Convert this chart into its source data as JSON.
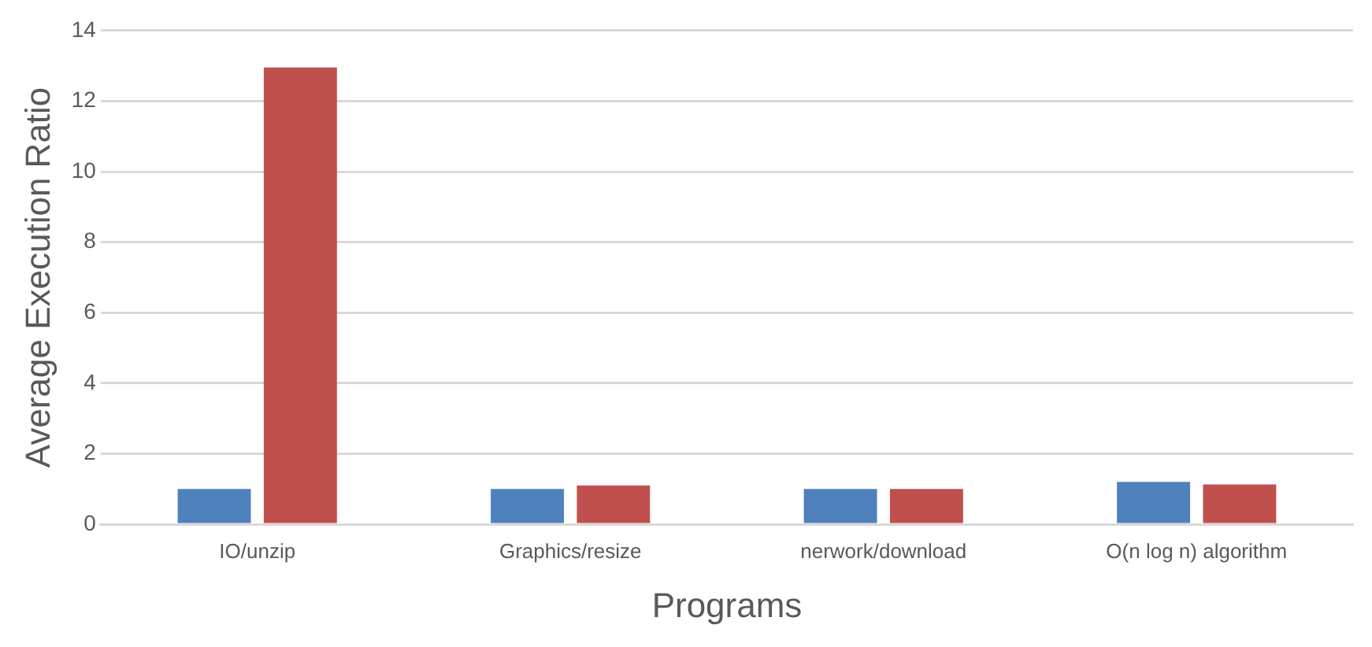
{
  "chart_data": {
    "type": "bar",
    "xlabel": "Programs",
    "ylabel": "Average Execution Ratio",
    "categories": [
      "IO/unzip",
      "Graphics/resize",
      "nerwork/download",
      "O(n log n) algorithm"
    ],
    "series": [
      {
        "color": "#4f81bd",
        "values": [
          1.0,
          1.0,
          1.0,
          1.2
        ]
      },
      {
        "color": "#c0504d",
        "values": [
          12.95,
          1.1,
          1.0,
          1.13
        ]
      }
    ],
    "ylim": [
      0,
      14
    ],
    "yticks": [
      0,
      2,
      4,
      6,
      8,
      10,
      12,
      14
    ],
    "grid": "y",
    "legend": false
  }
}
